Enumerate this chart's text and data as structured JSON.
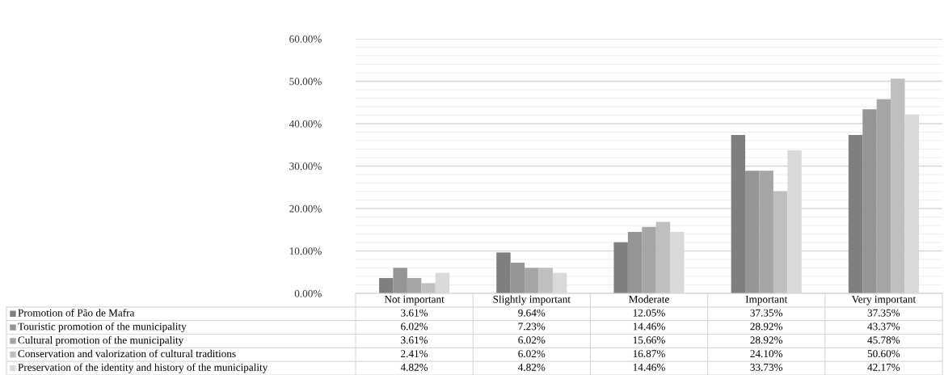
{
  "chart_data": {
    "type": "bar",
    "categories": [
      "Not important",
      "Slightly important",
      "Moderate",
      "Important",
      "Very important"
    ],
    "series": [
      {
        "name": "Promotion of Pão de Mafra",
        "color": "#7f7f7f",
        "values": [
          3.61,
          9.64,
          12.05,
          37.35,
          37.35
        ],
        "value_labels": [
          "3.61%",
          "9.64%",
          "12.05%",
          "37.35%",
          "37.35%"
        ]
      },
      {
        "name": "Touristic promotion of the municipality",
        "color": "#959595",
        "values": [
          6.02,
          7.23,
          14.46,
          28.92,
          43.37
        ],
        "value_labels": [
          "6.02%",
          "7.23%",
          "14.46%",
          "28.92%",
          "43.37%"
        ]
      },
      {
        "name": "Cultural promotion of the municipality",
        "color": "#a5a5a5",
        "values": [
          3.61,
          6.02,
          15.66,
          28.92,
          45.78
        ],
        "value_labels": [
          "3.61%",
          "6.02%",
          "15.66%",
          "28.92%",
          "45.78%"
        ]
      },
      {
        "name": "Conservation and valorization of cultural traditions",
        "color": "#bfbfbf",
        "values": [
          2.41,
          6.02,
          16.87,
          24.1,
          50.6
        ],
        "value_labels": [
          "2.41%",
          "6.02%",
          "16.87%",
          "24.10%",
          "50.60%"
        ]
      },
      {
        "name": "Preservation of the identity and history of the municipality",
        "color": "#d9d9d9",
        "values": [
          4.82,
          4.82,
          14.46,
          33.73,
          42.17
        ],
        "value_labels": [
          "4.82%",
          "4.82%",
          "14.46%",
          "33.73%",
          "42.17%"
        ]
      }
    ],
    "ylim": [
      0,
      60
    ],
    "yticks": [
      {
        "value": 0,
        "label": "0.00%"
      },
      {
        "value": 2,
        "label": null
      },
      {
        "value": 4,
        "label": null
      },
      {
        "value": 6,
        "label": null
      },
      {
        "value": 8,
        "label": null
      },
      {
        "value": 10,
        "label": "10.00%"
      },
      {
        "value": 12,
        "label": null
      },
      {
        "value": 14,
        "label": null
      },
      {
        "value": 16,
        "label": null
      },
      {
        "value": 18,
        "label": null
      },
      {
        "value": 20,
        "label": "20.00%"
      },
      {
        "value": 22,
        "label": null
      },
      {
        "value": 24,
        "label": null
      },
      {
        "value": 26,
        "label": null
      },
      {
        "value": 28,
        "label": null
      },
      {
        "value": 30,
        "label": "30.00%"
      },
      {
        "value": 32,
        "label": null
      },
      {
        "value": 34,
        "label": null
      },
      {
        "value": 36,
        "label": null
      },
      {
        "value": 38,
        "label": null
      },
      {
        "value": 40,
        "label": "40.00%"
      },
      {
        "value": 42,
        "label": null
      },
      {
        "value": 44,
        "label": null
      },
      {
        "value": 46,
        "label": null
      },
      {
        "value": 48,
        "label": null
      },
      {
        "value": 50,
        "label": "50.00%"
      },
      {
        "value": 52,
        "label": null
      },
      {
        "value": 54,
        "label": null
      },
      {
        "value": 56,
        "label": null
      },
      {
        "value": 58,
        "label": null
      },
      {
        "value": 60,
        "label": "60.00%"
      }
    ],
    "grid": "y",
    "legend": "bottom left"
  }
}
